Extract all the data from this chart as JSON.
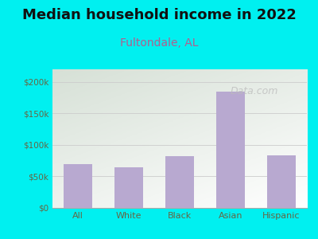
{
  "title": "Median household income in 2022",
  "subtitle": "Fultondale, AL",
  "categories": [
    "All",
    "White",
    "Black",
    "Asian",
    "Hispanic"
  ],
  "values": [
    70000,
    65000,
    82000,
    185000,
    83000
  ],
  "bar_color": "#b8a9d0",
  "title_fontsize": 13,
  "subtitle_fontsize": 10,
  "subtitle_color": "#b06090",
  "tick_label_color": "#666644",
  "background_outer": "#00f0f0",
  "ylim": [
    0,
    220000
  ],
  "yticks": [
    0,
    50000,
    100000,
    150000,
    200000
  ],
  "ytick_labels": [
    "$0",
    "$50k",
    "$100k",
    "$150k",
    "$200k"
  ],
  "watermark": "Data.com"
}
